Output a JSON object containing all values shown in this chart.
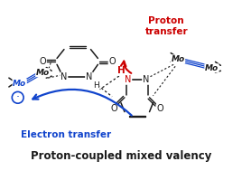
{
  "title": "Proton-coupled mixed valency",
  "title_fontsize": 8.5,
  "title_fontweight": "bold",
  "proton_transfer_text": "Proton\ntransfer",
  "electron_transfer_text": "Electron transfer",
  "proton_color": "#cc0000",
  "electron_color": "#1144cc",
  "background_color": "#ffffff",
  "atom_color": "#1a1a1a",
  "figsize": [
    2.68,
    1.89
  ],
  "dpi": 100
}
